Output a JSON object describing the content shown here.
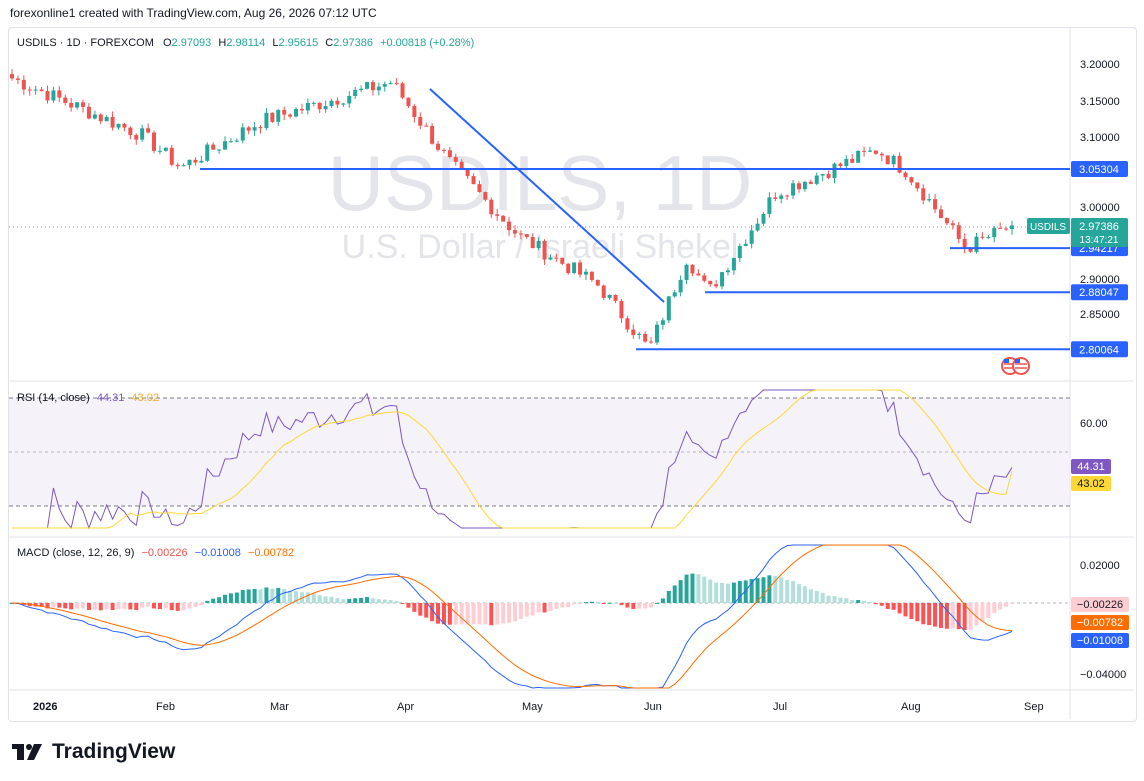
{
  "header": {
    "attribution": "forexonline1 created with TradingView.com, Aug 26, 2026 07:12 UTC"
  },
  "legend": {
    "symbol": "USDILS · 1D · FOREXCOM",
    "o_label": "O",
    "o": "2.97093",
    "h_label": "H",
    "h": "2.98114",
    "l_label": "L",
    "l": "2.95615",
    "c_label": "C",
    "c": "2.97386",
    "change": "+0.00818 (+0.28%)"
  },
  "watermark": {
    "title": "USDILS, 1D",
    "subtitle": "U.S. Dollar / Israeli Shekel"
  },
  "price_axis": {
    "ticks": [
      "3.20000",
      "3.15000",
      "3.10000",
      "3.00000",
      "2.90000",
      "2.85000"
    ],
    "current_label": "USDILS",
    "current_price": "2.97386",
    "countdown": "13:47:21"
  },
  "levels": [
    {
      "label": "3.05304",
      "value": 3.05304
    },
    {
      "label": "2.94217",
      "value": 2.94217
    },
    {
      "label": "2.88047",
      "value": 2.88047
    },
    {
      "label": "2.80064",
      "value": 2.80064
    }
  ],
  "rsi": {
    "title": "RSI (14, close)",
    "value": "44.31",
    "ma_value": "43.02",
    "tick": "60.00"
  },
  "macd": {
    "title": "MACD (close, 12, 26, 9)",
    "hist_value": "−0.00226",
    "macd_value": "−0.01008",
    "signal_value": "−0.00782",
    "ticks": [
      "0.02000",
      "−0.04000"
    ]
  },
  "time_axis": {
    "labels": [
      "2026",
      "Feb",
      "Mar",
      "Apr",
      "May",
      "Jun",
      "Jul",
      "Aug",
      "Sep"
    ]
  },
  "colors": {
    "up": "#26a69a",
    "down": "#ef5350",
    "level": "#2962ff",
    "rsi": "#7e57c2",
    "rsi_ma": "#fdd835",
    "macd": "#2962ff",
    "signal": "#ff6d00",
    "hist_up_strong": "#26a69a",
    "hist_up_weak": "#b2dfdb",
    "hist_down_strong": "#ff5252",
    "hist_down_weak": "#ffcdd2",
    "label_blue": "#2962ff"
  },
  "footer": {
    "brand": "TradingView"
  },
  "chart_data": {
    "type": "candlestick",
    "title": "USDILS, 1D",
    "subtitle": "U.S. Dollar / Israeli Shekel",
    "ylim": [
      2.79,
      3.22
    ],
    "x_labels": [
      "2026",
      "Feb",
      "Mar",
      "Apr",
      "May",
      "Jun",
      "Jul",
      "Aug",
      "Sep"
    ],
    "key_points": [
      {
        "date": "Jan 1",
        "close": 3.18
      },
      {
        "date": "Feb 1",
        "close": 3.1
      },
      {
        "date": "Feb 10",
        "close": 3.055
      },
      {
        "date": "Mar 1",
        "close": 3.12
      },
      {
        "date": "Apr 1",
        "close": 3.175
      },
      {
        "date": "Apr 15",
        "close": 3.06
      },
      {
        "date": "May 1",
        "close": 2.96
      },
      {
        "date": "May 20",
        "close": 2.89
      },
      {
        "date": "Jun 1",
        "close": 2.8
      },
      {
        "date": "Jun 10",
        "close": 2.93
      },
      {
        "date": "Jun 15",
        "close": 2.88
      },
      {
        "date": "Jul 1",
        "close": 3.02
      },
      {
        "date": "Jul 25",
        "close": 3.08
      },
      {
        "date": "Aug 1",
        "close": 3.05
      },
      {
        "date": "Aug 15",
        "close": 2.942
      },
      {
        "date": "Aug 26",
        "close": 2.97386
      }
    ],
    "horizontal_levels": [
      3.05304,
      2.94217,
      2.88047,
      2.80064
    ],
    "rsi": {
      "last": 44.31,
      "ma_last": 43.02,
      "bands": [
        30,
        70
      ]
    },
    "macd": {
      "hist_last": -0.00226,
      "macd_last": -0.01008,
      "signal_last": -0.00782
    }
  }
}
